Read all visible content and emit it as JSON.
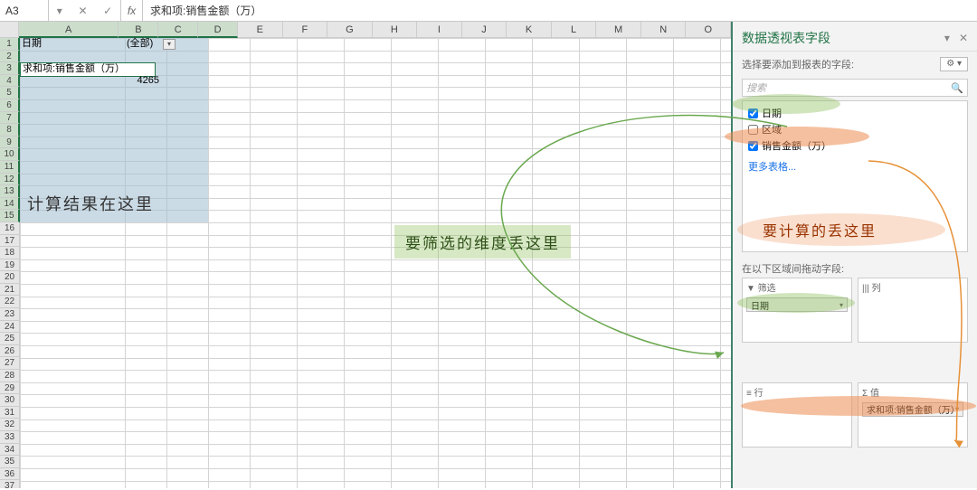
{
  "formula_bar": {
    "name_box": "A3",
    "fx": "fx",
    "formula": "求和项:销售金额（万）"
  },
  "columns": [
    "A",
    "B",
    "C",
    "D",
    "E",
    "F",
    "G",
    "H",
    "I",
    "J",
    "K",
    "L",
    "M",
    "N",
    "O"
  ],
  "rows_count": 37,
  "selection": {
    "cols": 4,
    "rows": 15
  },
  "cells": {
    "A1": "日期",
    "B1": "(全部)",
    "A3": "求和项:销售金额（万）",
    "B4": "4265"
  },
  "annotations": {
    "result": "计算结果在这里",
    "filter": "要筛选的维度丢这里",
    "calc": "要计算的丢这里"
  },
  "panel": {
    "title": "数据透视表字段",
    "subtitle": "选择要添加到报表的字段:",
    "search_placeholder": "搜索",
    "fields": [
      {
        "label": "日期",
        "checked": true
      },
      {
        "label": "区域",
        "checked": false
      },
      {
        "label": "销售金额（万）",
        "checked": true
      }
    ],
    "more": "更多表格...",
    "drag_label": "在以下区域间拖动字段:",
    "areas": {
      "filter_head": "▼ 筛选",
      "filter_item": "日期",
      "col_head": "|||  列",
      "row_head": "≡  行",
      "val_head": "Σ  值",
      "val_item": "求和项:销售金额（万）"
    }
  },
  "colors": {
    "accent": "#217346",
    "selection": "rgba(160,190,210,.55)",
    "green_hl": "rgba(140,190,90,.4)",
    "orange_hl": "rgba(237,140,80,.55)",
    "arrow_green": "#6aa84f",
    "arrow_orange": "#e69138"
  }
}
